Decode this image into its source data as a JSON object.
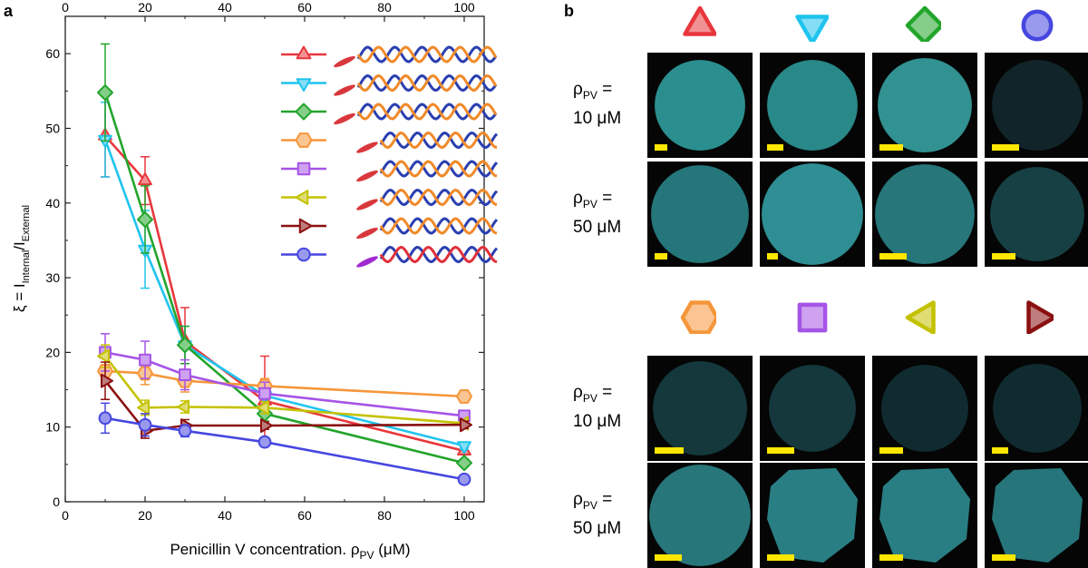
{
  "panel_a_letter": "a",
  "panel_b_letter": "b",
  "chart_data": {
    "type": "line",
    "ylabel_prefix": "ξ = I",
    "ylabel_sub1": "Internal",
    "ylabel_mid": "/I",
    "ylabel_sub2": "External",
    "xlabel_main": "Penicillin V concentration. ρ",
    "xlabel_sub": "PV",
    "xlabel_unit": " (μM)",
    "xlim": [
      0,
      105
    ],
    "ylim": [
      0,
      65
    ],
    "x_ticks": [
      0,
      20,
      40,
      60,
      80,
      100
    ],
    "y_ticks": [
      0,
      10,
      20,
      30,
      40,
      50,
      60
    ],
    "x": [
      10,
      20,
      30,
      50,
      100
    ],
    "series": [
      {
        "marker": "triangle-up",
        "color": "#e8373c",
        "values": [
          49.0,
          43.0,
          21.5,
          13.5,
          6.8
        ],
        "errors": [
          5.5,
          3.2,
          4.5,
          6.0,
          0.5
        ]
      },
      {
        "marker": "triangle-down",
        "color": "#1fc4ee",
        "values": [
          48.5,
          33.8,
          21.0,
          14.2,
          7.5
        ],
        "errors": [
          5.0,
          5.2,
          2.5,
          1.5,
          0.5
        ]
      },
      {
        "marker": "diamond",
        "color": "#22a52b",
        "values": [
          54.8,
          37.8,
          21.0,
          11.8,
          5.2
        ],
        "errors": [
          6.5,
          4.5,
          2.5,
          1.0,
          0.5
        ]
      },
      {
        "marker": "hexagon",
        "color": "#f5963a",
        "values": [
          17.5,
          17.2,
          16.2,
          15.5,
          14.1
        ],
        "errors": [
          1.8,
          1.5,
          1.5,
          1.0,
          0.4
        ]
      },
      {
        "marker": "square",
        "color": "#a554e6",
        "values": [
          20.0,
          19.0,
          17.0,
          14.5,
          11.5
        ],
        "errors": [
          2.5,
          2.5,
          2.0,
          1.5,
          0.5
        ]
      },
      {
        "marker": "triangle-left",
        "color": "#c4c200",
        "values": [
          19.5,
          12.6,
          12.7,
          12.6,
          10.5
        ],
        "errors": [
          1.5,
          1.0,
          0.8,
          0.8,
          0.5
        ]
      },
      {
        "marker": "triangle-right",
        "color": "#8b1010",
        "values": [
          16.2,
          9.5,
          10.2,
          10.2,
          10.3
        ],
        "errors": [
          2.5,
          1.0,
          0.8,
          0.5,
          0.5
        ]
      },
      {
        "marker": "circle",
        "color": "#4646e0",
        "values": [
          11.2,
          10.3,
          9.5,
          8.0,
          3.0
        ],
        "errors": [
          2.0,
          1.5,
          0.8,
          0.5,
          0.5
        ]
      }
    ]
  },
  "panel_b": {
    "row_labels": [
      {
        "rho": "ρ",
        "sub": "PV",
        "eq": " =",
        "value": "10 μM"
      },
      {
        "rho": "ρ",
        "sub": "PV",
        "eq": " =",
        "value": "50 μM"
      },
      {
        "rho": "ρ",
        "sub": "PV",
        "eq": " =",
        "value": "10 μM"
      },
      {
        "rho": "ρ",
        "sub": "PV",
        "eq": " =",
        "value": "50 μM"
      }
    ],
    "top_icons": [
      {
        "icon": "triangle-up-icon",
        "color": "#e8373c"
      },
      {
        "icon": "triangle-down-icon",
        "color": "#1fc4ee"
      },
      {
        "icon": "diamond-icon",
        "color": "#22a52b"
      },
      {
        "icon": "circle-icon",
        "color": "#4646e0"
      }
    ],
    "bottom_icons": [
      {
        "icon": "hexagon-icon",
        "color": "#f5963a"
      },
      {
        "icon": "square-icon",
        "color": "#a554e6"
      },
      {
        "icon": "triangle-left-icon",
        "color": "#c4c200"
      },
      {
        "icon": "triangle-right-icon",
        "color": "#8b1010"
      }
    ]
  }
}
